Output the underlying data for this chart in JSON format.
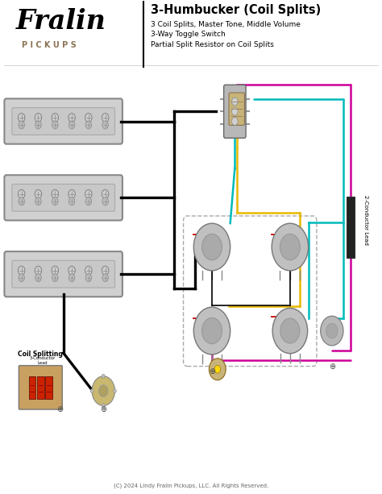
{
  "title": "3-Humbucker (Coil Splits)",
  "subtitle_lines": [
    "3 Coil Splits, Master Tone, Middle Volume",
    "3-Way Toggle Switch",
    "Partial Split Resistor on Coil Splits"
  ],
  "fralin_text": "Fralin",
  "pickups_text": "P I C K U P S",
  "copyright": "(C) 2024 Lindy Fralin Pickups, LLC. All Rights Reserved.",
  "coil_splitting_label": "Coil Splitting",
  "conductor_label": "2-Conductor Lead",
  "bg_color": "#ffffff",
  "title_color": "#000000",
  "fralin_color": "#000000",
  "pickups_color": "#8B7355",
  "pickup_fill": "#d0d0d0",
  "pickup_border": "#888888",
  "wire_black": "#000000",
  "wire_cyan": "#00BBBB",
  "wire_yellow": "#E8B800",
  "wire_magenta": "#CC0099",
  "wire_red": "#CC0000",
  "switch_fill": "#b0b0b0",
  "pot_fill": "#b0b0b0",
  "cap_fill": "#c8b478",
  "divider_color": "#000000"
}
